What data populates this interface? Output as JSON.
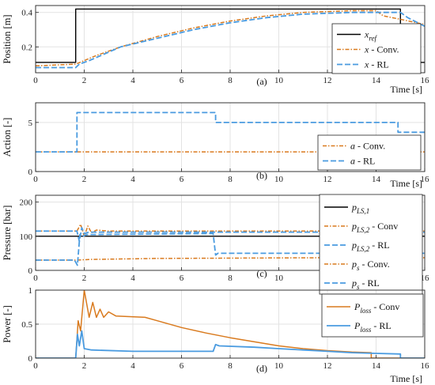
{
  "colors": {
    "ref": "#000000",
    "conv": "#D97A1E",
    "rl": "#4A9BE0"
  },
  "chart_data": [
    {
      "type": "line",
      "panel_label": "(a)",
      "ylabel": "Position [m]",
      "xlabel": "Time [s]",
      "xlim": [
        0,
        16
      ],
      "ylim": [
        0.05,
        0.44
      ],
      "xticks": [
        0,
        2,
        4,
        6,
        8,
        10,
        12,
        14,
        16
      ],
      "yticks": [
        0.2,
        0.4
      ],
      "ytick_labels": [
        "0.2",
        "0.4"
      ],
      "grid": true,
      "legend_position": "right",
      "series": [
        {
          "name": "x_ref",
          "legend_main": "x",
          "legend_sub": "ref",
          "legend_suffix": "",
          "style": "ref",
          "points": [
            [
              0,
              0.11
            ],
            [
              1.65,
              0.11
            ],
            [
              1.65,
              0.42
            ],
            [
              15,
              0.42
            ],
            [
              15,
              0.11
            ],
            [
              16,
              0.11
            ]
          ]
        },
        {
          "name": "x - Conv.",
          "legend_main": "x",
          "legend_sub": "",
          "legend_suffix": " - Conv.",
          "style": "conv",
          "points": [
            [
              0,
              0.09
            ],
            [
              1.65,
              0.1
            ],
            [
              2.5,
              0.15
            ],
            [
              3.5,
              0.2
            ],
            [
              5,
              0.26
            ],
            [
              6.5,
              0.31
            ],
            [
              8,
              0.35
            ],
            [
              9.5,
              0.38
            ],
            [
              11,
              0.4
            ],
            [
              12,
              0.405
            ],
            [
              13,
              0.41
            ],
            [
              14,
              0.41
            ],
            [
              14.3,
              0.38
            ],
            [
              15,
              0.36
            ],
            [
              16,
              0.33
            ]
          ]
        },
        {
          "name": "x - RL",
          "legend_main": "x",
          "legend_sub": "",
          "legend_suffix": " - RL",
          "style": "rl",
          "points": [
            [
              0,
              0.08
            ],
            [
              1.65,
              0.08
            ],
            [
              1.8,
              0.1
            ],
            [
              2.2,
              0.12
            ],
            [
              3.5,
              0.2
            ],
            [
              5,
              0.25
            ],
            [
              6.5,
              0.3
            ],
            [
              8,
              0.34
            ],
            [
              9.5,
              0.37
            ],
            [
              11,
              0.39
            ],
            [
              12,
              0.395
            ],
            [
              13,
              0.4
            ],
            [
              14,
              0.4
            ],
            [
              15,
              0.4
            ],
            [
              15.3,
              0.37
            ],
            [
              16,
              0.32
            ]
          ]
        }
      ]
    },
    {
      "type": "line",
      "panel_label": "(b)",
      "ylabel": "Action [-]",
      "xlabel": "Time [s]",
      "xlim": [
        0,
        16
      ],
      "ylim": [
        0,
        7
      ],
      "xticks": [
        0,
        2,
        4,
        6,
        8,
        10,
        12,
        14,
        16
      ],
      "yticks": [
        0,
        5
      ],
      "ytick_labels": [
        "0",
        "5"
      ],
      "grid": true,
      "legend_position": "bottom-right",
      "series": [
        {
          "name": "a - Conv.",
          "legend_main": "a",
          "legend_sub": "",
          "legend_suffix": " - Conv.",
          "style": "conv",
          "points": [
            [
              0,
              2
            ],
            [
              16,
              2
            ]
          ]
        },
        {
          "name": "a - RL",
          "legend_main": "a",
          "legend_sub": "",
          "legend_suffix": " - RL",
          "style": "rl",
          "points": [
            [
              0,
              2
            ],
            [
              1.7,
              2
            ],
            [
              1.7,
              6
            ],
            [
              7.4,
              6
            ],
            [
              7.4,
              5
            ],
            [
              14.9,
              5
            ],
            [
              14.9,
              4
            ],
            [
              16,
              4
            ]
          ]
        }
      ]
    },
    {
      "type": "line",
      "panel_label": "(c)",
      "ylabel": "Pressure [bar]",
      "xlabel": "Time [s]",
      "xlim": [
        0,
        16
      ],
      "ylim": [
        0,
        220
      ],
      "xticks": [
        0,
        2,
        4,
        6,
        8,
        10,
        12,
        14,
        16
      ],
      "yticks": [
        0,
        100,
        200
      ],
      "ytick_labels": [
        "0",
        "100",
        "200"
      ],
      "grid": true,
      "legend_position": "right",
      "series": [
        {
          "name": "p_LS,1",
          "legend_main": "p",
          "legend_sub": "LS,1",
          "legend_suffix": "",
          "style": "ref",
          "points": [
            [
              0,
              100
            ],
            [
              16,
              100
            ]
          ]
        },
        {
          "name": "p_LS,2 - Conv",
          "legend_main": "p",
          "legend_sub": "LS,2",
          "legend_suffix": " - Conv",
          "style": "conv",
          "points": [
            [
              0,
              115
            ],
            [
              1.7,
              115
            ],
            [
              1.85,
              135
            ],
            [
              2.0,
              100
            ],
            [
              2.15,
              130
            ],
            [
              2.3,
              110
            ],
            [
              2.5,
              118
            ],
            [
              3,
              115
            ],
            [
              16,
              115
            ]
          ]
        },
        {
          "name": "p_LS,2 - RL",
          "legend_main": "p",
          "legend_sub": "LS,2",
          "legend_suffix": " - RL",
          "style": "rl",
          "points": [
            [
              0,
              115
            ],
            [
              1.7,
              115
            ],
            [
              1.8,
              85
            ],
            [
              1.9,
              125
            ],
            [
              2.0,
              108
            ],
            [
              2.2,
              112
            ],
            [
              7.4,
              112
            ],
            [
              7.5,
              112
            ],
            [
              16,
              112
            ]
          ]
        },
        {
          "name": "p_s - Conv.",
          "legend_main": "p",
          "legend_sub": "s",
          "legend_suffix": " - Conv.",
          "style": "conv",
          "points": [
            [
              0,
              30
            ],
            [
              1.7,
              30
            ],
            [
              2.2,
              32
            ],
            [
              5,
              35
            ],
            [
              8,
              36
            ],
            [
              12,
              37
            ],
            [
              16,
              37
            ]
          ]
        },
        {
          "name": "p_s - RL",
          "legend_main": "p",
          "legend_sub": "s",
          "legend_suffix": " - RL",
          "style": "rl",
          "points": [
            [
              0,
              30
            ],
            [
              1.6,
              30
            ],
            [
              1.72,
              15
            ],
            [
              1.82,
              105
            ],
            [
              1.95,
              100
            ],
            [
              2.1,
              105
            ],
            [
              7.3,
              108
            ],
            [
              7.4,
              45
            ],
            [
              7.5,
              50
            ],
            [
              16,
              50
            ]
          ]
        }
      ]
    },
    {
      "type": "line",
      "panel_label": "(d)",
      "ylabel": "Power [-]",
      "xlabel": "Time [s]",
      "xlim": [
        0,
        16
      ],
      "ylim": [
        0,
        1
      ],
      "xticks": [
        0,
        2,
        4,
        6,
        8,
        10,
        12,
        14,
        16
      ],
      "yticks": [
        0,
        0.5,
        1
      ],
      "ytick_labels": [
        "0",
        "0.5",
        "1"
      ],
      "grid": true,
      "legend_position": "top-right",
      "series": [
        {
          "name": "P_loss - Conv",
          "legend_main": "P",
          "legend_sub": "loss",
          "legend_suffix": " - Conv",
          "style": "conv",
          "points": [
            [
              0,
              0
            ],
            [
              1.65,
              0
            ],
            [
              1.75,
              0.55
            ],
            [
              1.85,
              0.4
            ],
            [
              2.0,
              1.0
            ],
            [
              2.2,
              0.6
            ],
            [
              2.35,
              0.82
            ],
            [
              2.5,
              0.6
            ],
            [
              2.65,
              0.72
            ],
            [
              2.8,
              0.6
            ],
            [
              3.0,
              0.68
            ],
            [
              3.3,
              0.62
            ],
            [
              4.5,
              0.6
            ],
            [
              5,
              0.55
            ],
            [
              6,
              0.45
            ],
            [
              7,
              0.37
            ],
            [
              8,
              0.3
            ],
            [
              9,
              0.24
            ],
            [
              10,
              0.18
            ],
            [
              11,
              0.14
            ],
            [
              12,
              0.11
            ],
            [
              13,
              0.09
            ],
            [
              13.8,
              0.08
            ],
            [
              13.8,
              0
            ],
            [
              16,
              0
            ]
          ]
        },
        {
          "name": "P_loss - RL",
          "legend_main": "P",
          "legend_sub": "loss",
          "legend_suffix": " - RL",
          "style": "rl",
          "points": [
            [
              0,
              0
            ],
            [
              1.65,
              0
            ],
            [
              1.72,
              0.35
            ],
            [
              1.8,
              0.18
            ],
            [
              1.9,
              0.4
            ],
            [
              2.0,
              0.14
            ],
            [
              2.3,
              0.12
            ],
            [
              4,
              0.1
            ],
            [
              7.3,
              0.1
            ],
            [
              7.4,
              0.2
            ],
            [
              7.55,
              0.18
            ],
            [
              9,
              0.16
            ],
            [
              10,
              0.14
            ],
            [
              11,
              0.12
            ],
            [
              12,
              0.1
            ],
            [
              13,
              0.08
            ],
            [
              14,
              0.07
            ],
            [
              15,
              0.06
            ],
            [
              15,
              0
            ],
            [
              16,
              0
            ]
          ]
        }
      ]
    }
  ]
}
